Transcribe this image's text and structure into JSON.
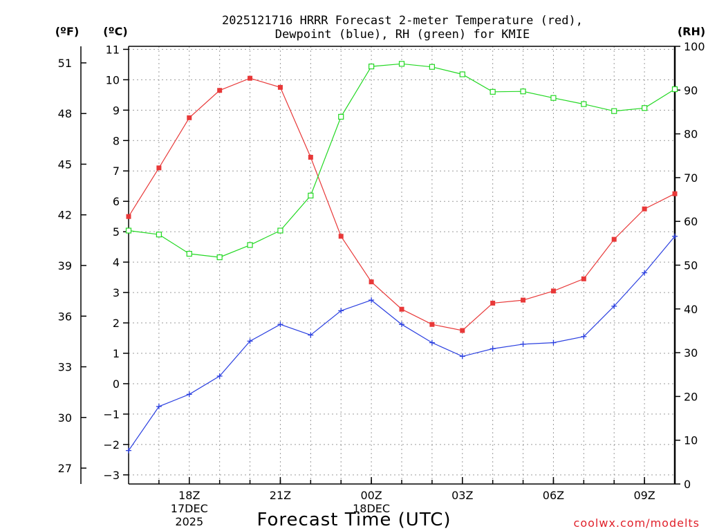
{
  "chart_data": {
    "type": "line",
    "title_line1": "2025121716 HRRR Forecast 2-meter Temperature (red),",
    "title_line2": "Dewpoint (blue), RH (green) for KMIE",
    "xlabel": "Forecast Time (UTC)",
    "credit": "coolwx.com/modelts",
    "unit_f": "(ºF)",
    "unit_c": "(ºC)",
    "unit_rh": "(RH)",
    "x_hours": [
      16,
      17,
      18,
      19,
      20,
      21,
      22,
      23,
      24,
      25,
      26,
      27,
      28,
      29,
      30,
      31,
      32,
      33,
      34
    ],
    "x_range": [
      16,
      34
    ],
    "x_ticks": [
      {
        "hour": 18,
        "label": "18Z",
        "date": "17DEC",
        "year": "2025"
      },
      {
        "hour": 21,
        "label": "21Z",
        "date": "",
        "year": ""
      },
      {
        "hour": 24,
        "label": "00Z",
        "date": "18DEC",
        "year": ""
      },
      {
        "hour": 27,
        "label": "03Z",
        "date": "",
        "year": ""
      },
      {
        "hour": 30,
        "label": "06Z",
        "date": "",
        "year": ""
      },
      {
        "hour": 33,
        "label": "09Z",
        "date": "",
        "year": ""
      }
    ],
    "ylim_c": [
      -3.3,
      11.1
    ],
    "y_ticks_c": [
      -3,
      -2,
      -1,
      0,
      1,
      2,
      3,
      4,
      5,
      6,
      7,
      8,
      9,
      10,
      11
    ],
    "y_ticks_f": [
      27,
      30,
      33,
      36,
      39,
      42,
      45,
      48,
      51
    ],
    "ylim_rh": [
      0,
      100
    ],
    "y_ticks_rh": [
      0,
      10,
      20,
      30,
      40,
      50,
      60,
      70,
      80,
      90,
      100
    ],
    "series": [
      {
        "name": "Temperature",
        "axis": "c",
        "color": "#e83838",
        "marker": "filled-square",
        "values": [
          5.5,
          7.1,
          8.75,
          9.65,
          10.05,
          9.75,
          7.45,
          4.85,
          3.35,
          2.45,
          1.95,
          1.75,
          2.65,
          2.75,
          3.05,
          3.45,
          4.75,
          5.75,
          6.25
        ]
      },
      {
        "name": "Dewpoint",
        "axis": "c",
        "color": "#2a3fe0",
        "marker": "plus",
        "values": [
          -2.2,
          -0.75,
          -0.35,
          0.25,
          1.4,
          1.95,
          1.6,
          2.4,
          2.75,
          1.95,
          1.35,
          0.9,
          1.15,
          1.3,
          1.35,
          1.55,
          2.55,
          3.65,
          4.85
        ]
      },
      {
        "name": "RH",
        "axis": "rh",
        "color": "#22d822",
        "marker": "open-square",
        "values": [
          57.9,
          57.0,
          52.6,
          51.8,
          54.6,
          57.9,
          65.9,
          83.9,
          95.4,
          96.0,
          95.3,
          93.6,
          89.6,
          89.7,
          88.2,
          86.8,
          85.2,
          85.9,
          90.2
        ]
      }
    ]
  }
}
